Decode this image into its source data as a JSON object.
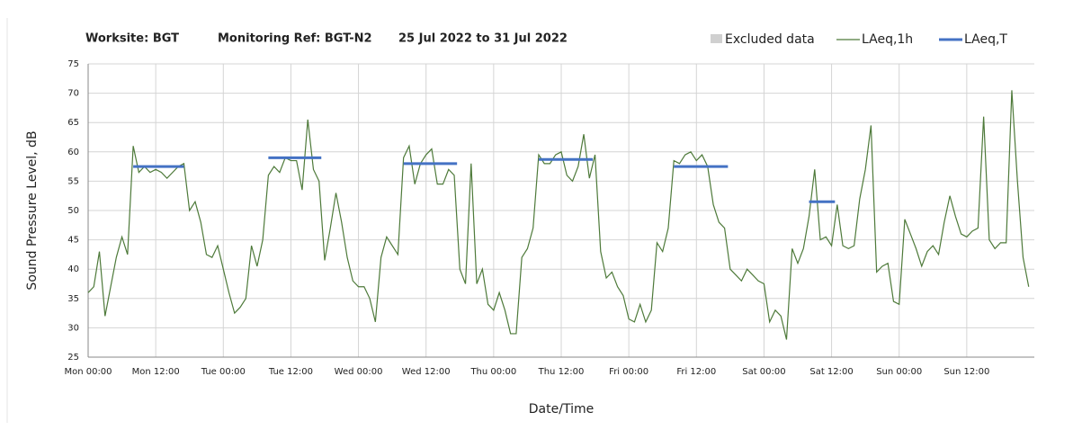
{
  "chart_data": {
    "type": "line",
    "title": [
      "Worksite: BGT",
      "Monitoring Ref: BGT-N2",
      "25 Jul 2022 to 31 Jul 2022"
    ],
    "x_label": "Date/Time",
    "y_label": "Sound Pressure Level, dB",
    "excluded": {
      "name": "Excluded data",
      "color": "#d0d0d0"
    },
    "xlim": [
      0,
      168
    ],
    "ylim": [
      25,
      75
    ],
    "grid": true,
    "yticks": [
      25,
      30,
      35,
      40,
      45,
      50,
      55,
      60,
      65,
      70,
      75
    ],
    "xticks": [
      {
        "value": 0,
        "label": "Mon 00:00"
      },
      {
        "value": 12,
        "label": "Mon 12:00"
      },
      {
        "value": 24,
        "label": "Tue 00:00"
      },
      {
        "value": 36,
        "label": "Tue 12:00"
      },
      {
        "value": 48,
        "label": "Wed 00:00"
      },
      {
        "value": 60,
        "label": "Wed 12:00"
      },
      {
        "value": 72,
        "label": "Thu 00:00"
      },
      {
        "value": 84,
        "label": "Thu 12:00"
      },
      {
        "value": 96,
        "label": "Fri 00:00"
      },
      {
        "value": 108,
        "label": "Fri 12:00"
      },
      {
        "value": 120,
        "label": "Sat 00:00"
      },
      {
        "value": 132,
        "label": "Sat 12:00"
      },
      {
        "value": 144,
        "label": "Sun 00:00"
      },
      {
        "value": 156,
        "label": "Sun 12:00"
      }
    ],
    "series": [
      {
        "name": "LAeq,1h",
        "color": "#4e7a3a",
        "x": [
          0,
          1,
          2,
          3,
          4,
          5,
          6,
          7,
          8,
          9,
          10,
          11,
          12,
          13,
          14,
          15,
          16,
          17,
          18,
          19,
          20,
          21,
          22,
          23,
          24,
          25,
          26,
          27,
          28,
          29,
          30,
          31,
          32,
          33,
          34,
          35,
          36,
          37,
          38,
          39,
          40,
          41,
          42,
          43,
          44,
          45,
          46,
          47,
          48,
          49,
          50,
          51,
          52,
          53,
          54,
          55,
          56,
          57,
          58,
          59,
          60,
          61,
          62,
          63,
          64,
          65,
          66,
          67,
          68,
          69,
          70,
          71,
          72,
          73,
          74,
          75,
          76,
          77,
          78,
          79,
          80,
          81,
          82,
          83,
          84,
          85,
          86,
          87,
          88,
          89,
          90,
          91,
          92,
          93,
          94,
          95,
          96,
          97,
          98,
          99,
          100,
          101,
          102,
          103,
          104,
          105,
          106,
          107,
          108,
          109,
          110,
          111,
          112,
          113,
          114,
          115,
          116,
          117,
          118,
          119,
          120,
          121,
          122,
          123,
          124,
          125,
          126,
          127,
          128,
          129,
          130,
          131,
          132,
          133,
          134,
          135,
          136,
          137,
          138,
          139,
          140,
          141,
          142,
          143,
          144,
          145,
          146,
          147,
          148,
          149,
          150,
          151,
          152,
          153,
          154,
          155,
          156,
          157,
          158,
          159,
          160,
          161,
          162,
          163,
          164,
          165,
          166,
          167
        ],
        "values": [
          36,
          37,
          43,
          32,
          37,
          42,
          45.5,
          42.5,
          61,
          56.5,
          57.5,
          56.5,
          57,
          56.5,
          55.5,
          56.5,
          57.5,
          58,
          50,
          51.5,
          48,
          42.5,
          42,
          44,
          40,
          36,
          32.5,
          33.5,
          35,
          44,
          40.5,
          45,
          56,
          57.5,
          56.5,
          59,
          58.5,
          58.5,
          53.5,
          65.5,
          57,
          55,
          41.5,
          47,
          53,
          48,
          42,
          38,
          37,
          37,
          35,
          31,
          42,
          45.5,
          44,
          42.5,
          59,
          61,
          54.5,
          58,
          59.5,
          60.5,
          54.5,
          54.5,
          57,
          56,
          40,
          37.5,
          58,
          37.5,
          40,
          34,
          33,
          36,
          33,
          29,
          29,
          42,
          43.5,
          47,
          59.5,
          58,
          58,
          59.5,
          60,
          56,
          55,
          57.5,
          63,
          55.5,
          59.5,
          43,
          38.5,
          39.5,
          37,
          35.5,
          31.5,
          31,
          34,
          31,
          33,
          44.5,
          43,
          47,
          58.5,
          58,
          59.5,
          60,
          58.5,
          59.5,
          57.5,
          51,
          48,
          47,
          40,
          39,
          38,
          40,
          39,
          38,
          37.5,
          31,
          33,
          32,
          28,
          43.5,
          41,
          43.5,
          49,
          57,
          45,
          45.5,
          44,
          51,
          44,
          43.5,
          44,
          52,
          57,
          64.5,
          39.5,
          40.5,
          41,
          34.5,
          34,
          48.5,
          46,
          43.5,
          40.5,
          43,
          44,
          42.5,
          48,
          52.5,
          49,
          46,
          45.5,
          46.5,
          47,
          66,
          45,
          43.5,
          44.5,
          44.5,
          70.5,
          55,
          42,
          37
        ]
      },
      {
        "name": "LAeq,T",
        "color": "#4472c4",
        "x": [
          8,
          32,
          56,
          80,
          104,
          128
        ],
        "x_end": [
          17,
          41.4,
          65.5,
          89.6,
          113.6,
          132.6
        ],
        "values": [
          57.5,
          59,
          58,
          58.7,
          57.5,
          51.5
        ]
      }
    ]
  }
}
